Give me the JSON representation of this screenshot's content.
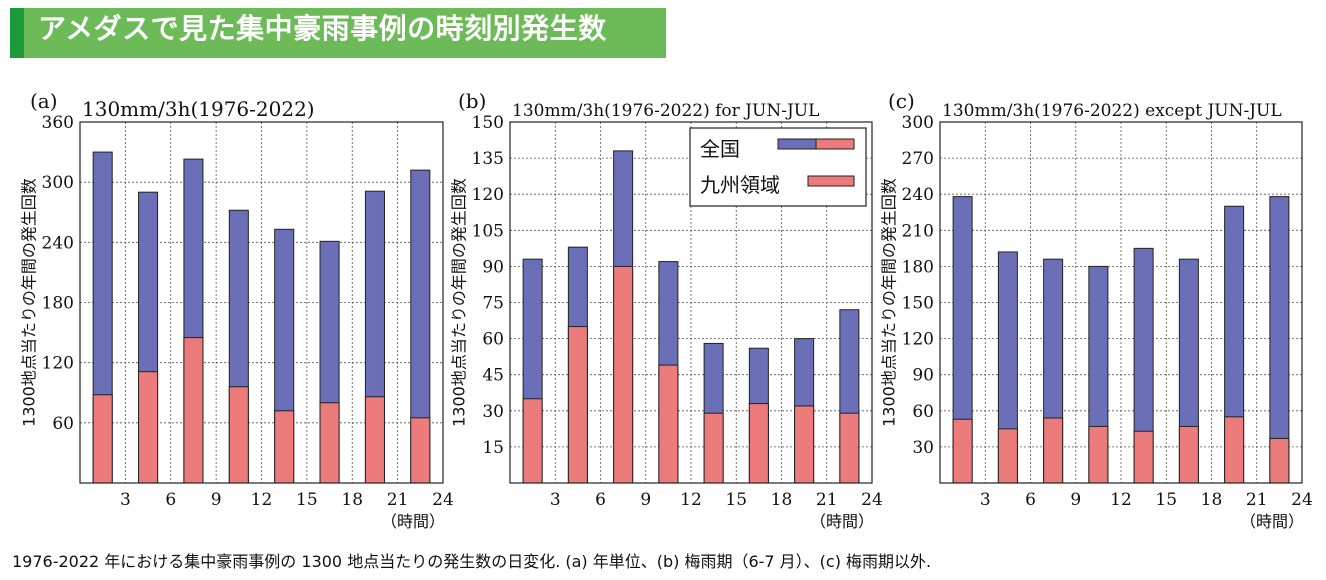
{
  "header": {
    "title": "アメダスで見た集中豪雨事例の時刻別発生数"
  },
  "caption": "1976-2022 年における集中豪雨事例の 1300 地点当たりの発生数の日変化.  (a) 年単位、(b) 梅雨期（6-7 月）、(c) 梅雨期以外.",
  "colors": {
    "total": "#6b6fb8",
    "kyushu": "#ec7b7b",
    "header_bg": "#6cba58",
    "header_accent": "#1a9a3b"
  },
  "chart_data": [
    {
      "type": "bar",
      "panel_label": "(a)",
      "title": "130mm/3h(1976-2022)",
      "ylabel": "1300地点当たりの年間の発生回数",
      "xlabel": "（時間）",
      "x_ticks": [
        "3",
        "6",
        "9",
        "12",
        "15",
        "18",
        "21",
        "24"
      ],
      "y_ticks": [
        "60",
        "120",
        "180",
        "240",
        "300",
        "360"
      ],
      "ylim": [
        0,
        360
      ],
      "categories": [
        "0-3",
        "3-6",
        "6-9",
        "9-12",
        "12-15",
        "15-18",
        "18-21",
        "21-24"
      ],
      "series": [
        {
          "name": "全国",
          "values": [
            330,
            290,
            323,
            272,
            253,
            241,
            291,
            312
          ]
        },
        {
          "name": "九州領域",
          "values": [
            88,
            111,
            145,
            96,
            72,
            80,
            86,
            65
          ]
        }
      ],
      "grid": true
    },
    {
      "type": "bar",
      "panel_label": "(b)",
      "title": "130mm/3h(1976-2022) for JUN-JUL",
      "ylabel": "1300地点当たりの年間の発生回数",
      "xlabel": "（時間）",
      "x_ticks": [
        "3",
        "6",
        "9",
        "12",
        "15",
        "18",
        "21",
        "24"
      ],
      "y_ticks": [
        "15",
        "30",
        "45",
        "60",
        "75",
        "90",
        "105",
        "120",
        "135",
        "150"
      ],
      "ylim": [
        0,
        150
      ],
      "categories": [
        "0-3",
        "3-6",
        "6-9",
        "9-12",
        "12-15",
        "15-18",
        "18-21",
        "21-24"
      ],
      "series": [
        {
          "name": "全国",
          "values": [
            93,
            98,
            138,
            92,
            58,
            56,
            60,
            72
          ]
        },
        {
          "name": "九州領域",
          "values": [
            35,
            65,
            90,
            49,
            29,
            33,
            32,
            29
          ]
        }
      ],
      "legend": {
        "position": "top-right",
        "entries": [
          "全国",
          "九州領域"
        ]
      },
      "grid": true
    },
    {
      "type": "bar",
      "panel_label": "(c)",
      "title": "130mm/3h(1976-2022) except JUN-JUL",
      "ylabel": "1300地点当たりの年間の発生回数",
      "xlabel": "（時間）",
      "x_ticks": [
        "3",
        "6",
        "9",
        "12",
        "15",
        "18",
        "21",
        "24"
      ],
      "y_ticks": [
        "30",
        "60",
        "90",
        "120",
        "150",
        "180",
        "210",
        "240",
        "270",
        "300"
      ],
      "ylim": [
        0,
        300
      ],
      "categories": [
        "0-3",
        "3-6",
        "6-9",
        "9-12",
        "12-15",
        "15-18",
        "18-21",
        "21-24"
      ],
      "series": [
        {
          "name": "全国",
          "values": [
            238,
            192,
            186,
            180,
            195,
            186,
            230,
            238
          ]
        },
        {
          "name": "九州領域",
          "values": [
            53,
            45,
            54,
            47,
            43,
            47,
            55,
            37
          ]
        }
      ],
      "grid": true
    }
  ]
}
